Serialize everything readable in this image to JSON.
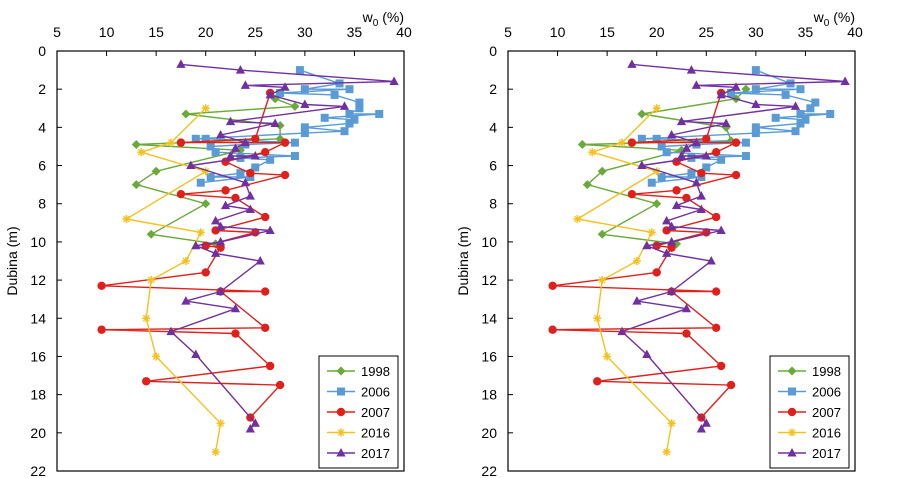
{
  "chart_data": [
    {
      "type": "scatter",
      "title": "",
      "xlabel": "w0 (%)",
      "xlabel_main": "w",
      "xlabel_sub": "0",
      "xlabel_unit": " (%)",
      "ylabel": "Dubina (m)",
      "xlim": [
        5,
        40
      ],
      "ylim": [
        0,
        22
      ],
      "y_inverted": true,
      "x_ticks": [
        5,
        10,
        15,
        20,
        25,
        30,
        35,
        40
      ],
      "y_ticks": [
        0,
        2,
        4,
        6,
        8,
        10,
        12,
        14,
        16,
        18,
        20,
        22
      ],
      "grid": false,
      "legend_position": "bottom-right",
      "series": [
        {
          "name": "1998",
          "color": "#6aaa3a",
          "marker": "diamond",
          "points": [
            [
              27,
              2.5
            ],
            [
              29,
              2.9
            ],
            [
              18,
              3.3
            ],
            [
              27.5,
              3.9
            ],
            [
              27.5,
              4.6
            ],
            [
              13,
              4.9
            ],
            [
              23.5,
              5.2
            ],
            [
              15,
              6.3
            ],
            [
              13,
              7.0
            ],
            [
              20,
              8.0
            ],
            [
              14.5,
              9.6
            ],
            [
              21,
              10.1
            ]
          ]
        },
        {
          "name": "2006",
          "color": "#5b9bd5",
          "marker": "square",
          "points": [
            [
              29.5,
              1.0
            ],
            [
              33.5,
              1.7
            ],
            [
              30,
              2.0
            ],
            [
              34.5,
              2.0
            ],
            [
              27.5,
              2.2
            ],
            [
              33,
              2.3
            ],
            [
              35.5,
              2.7
            ],
            [
              35.5,
              3.0
            ],
            [
              34.5,
              3.3
            ],
            [
              37.5,
              3.3
            ],
            [
              32,
              3.5
            ],
            [
              35,
              3.6
            ],
            [
              34.5,
              3.8
            ],
            [
              30,
              4.0
            ],
            [
              34,
              4.2
            ],
            [
              30,
              4.3
            ],
            [
              19,
              4.6
            ],
            [
              20,
              4.6
            ],
            [
              29,
              4.8
            ],
            [
              24,
              4.9
            ],
            [
              20.5,
              5.0
            ],
            [
              21,
              5.3
            ],
            [
              29,
              5.5
            ],
            [
              23.5,
              5.6
            ],
            [
              26.5,
              5.7
            ],
            [
              25,
              6.1
            ],
            [
              23.5,
              6.4
            ],
            [
              20.5,
              6.6
            ],
            [
              24.5,
              6.6
            ],
            [
              19.5,
              6.9
            ]
          ]
        },
        {
          "name": "2007",
          "color": "#e0201b",
          "marker": "circle",
          "points": [
            [
              26.5,
              2.2
            ],
            [
              25,
              4.6
            ],
            [
              17.5,
              4.8
            ],
            [
              28,
              4.8
            ],
            [
              26,
              5.3
            ],
            [
              22,
              5.8
            ],
            [
              24.5,
              6.4
            ],
            [
              28,
              6.5
            ],
            [
              22,
              7.3
            ],
            [
              17.5,
              7.5
            ],
            [
              23,
              7.7
            ],
            [
              26,
              8.7
            ],
            [
              21,
              9.4
            ],
            [
              25,
              9.5
            ],
            [
              20,
              10.2
            ],
            [
              21.5,
              10.3
            ],
            [
              20,
              11.6
            ],
            [
              9.5,
              12.3
            ],
            [
              26,
              12.6
            ],
            [
              21.5,
              12.6
            ],
            [
              26,
              14.5
            ],
            [
              9.5,
              14.6
            ],
            [
              23,
              14.8
            ],
            [
              26.5,
              16.5
            ],
            [
              14,
              17.3
            ],
            [
              27.5,
              17.5
            ],
            [
              24.5,
              19.2
            ]
          ]
        },
        {
          "name": "2016",
          "color": "#f5c11f",
          "marker": "star",
          "points": [
            [
              20,
              3.0
            ],
            [
              16.5,
              4.8
            ],
            [
              13.5,
              5.3
            ],
            [
              20,
              6.3
            ],
            [
              12,
              8.8
            ],
            [
              19.5,
              9.5
            ],
            [
              18,
              11.0
            ],
            [
              14.5,
              12.0
            ],
            [
              14,
              14.0
            ],
            [
              15,
              16.0
            ],
            [
              21.5,
              19.5
            ],
            [
              21,
              21.0
            ]
          ]
        },
        {
          "name": "2017",
          "color": "#7030a0",
          "marker": "triangle",
          "points": [
            [
              17.5,
              0.7
            ],
            [
              23.5,
              1.0
            ],
            [
              39,
              1.6
            ],
            [
              24,
              1.8
            ],
            [
              28,
              1.9
            ],
            [
              26.5,
              2.3
            ],
            [
              30,
              2.8
            ],
            [
              34,
              2.9
            ],
            [
              22.5,
              3.7
            ],
            [
              27,
              3.8
            ],
            [
              21.5,
              4.4
            ],
            [
              24,
              4.8
            ],
            [
              23,
              5.1
            ],
            [
              22.5,
              5.5
            ],
            [
              25,
              5.5
            ],
            [
              18.5,
              6.0
            ],
            [
              24,
              6.9
            ],
            [
              24.5,
              7.6
            ],
            [
              22,
              8.1
            ],
            [
              24.5,
              8.3
            ],
            [
              21,
              8.9
            ],
            [
              21.5,
              9.2
            ],
            [
              26.5,
              9.4
            ],
            [
              21.5,
              10.0
            ],
            [
              19,
              10.2
            ],
            [
              21,
              10.6
            ],
            [
              25.5,
              11.0
            ],
            [
              21.5,
              12.6
            ],
            [
              18,
              13.1
            ],
            [
              23,
              13.5
            ],
            [
              16.5,
              14.7
            ],
            [
              19,
              15.9
            ],
            [
              25,
              19.5
            ],
            [
              24.5,
              19.8
            ]
          ]
        }
      ]
    },
    {
      "type": "scatter",
      "title": "",
      "xlabel": "w0 (%)",
      "xlabel_main": "w",
      "xlabel_sub": "0",
      "xlabel_unit": " (%)",
      "ylabel": "Dubina (m)",
      "xlim": [
        5,
        40
      ],
      "ylim": [
        0,
        22
      ],
      "y_inverted": true,
      "x_ticks": [
        5,
        10,
        15,
        20,
        25,
        30,
        35,
        40
      ],
      "y_ticks": [
        0,
        2,
        4,
        6,
        8,
        10,
        12,
        14,
        16,
        18,
        20,
        22
      ],
      "grid": false,
      "legend_position": "bottom-right",
      "series": [
        {
          "name": "1998",
          "color": "#6aaa3a",
          "marker": "diamond",
          "points": [
            [
              29,
              2.0
            ],
            [
              28,
              2.5
            ],
            [
              18.5,
              3.3
            ],
            [
              27,
              4.0
            ],
            [
              27.5,
              4.7
            ],
            [
              12.5,
              4.9
            ],
            [
              22.5,
              5.2
            ],
            [
              14.5,
              6.3
            ],
            [
              13,
              7.0
            ],
            [
              20,
              8.0
            ],
            [
              14.5,
              9.6
            ],
            [
              22,
              10.1
            ]
          ]
        },
        {
          "name": "2006",
          "color": "#5b9bd5",
          "marker": "square",
          "points": [
            [
              30,
              1.0
            ],
            [
              33.5,
              1.7
            ],
            [
              30,
              2.0
            ],
            [
              34.5,
              2.0
            ],
            [
              27.5,
              2.2
            ],
            [
              33,
              2.3
            ],
            [
              36,
              2.7
            ],
            [
              35.5,
              3.0
            ],
            [
              34.5,
              3.3
            ],
            [
              37.5,
              3.3
            ],
            [
              32,
              3.5
            ],
            [
              35,
              3.6
            ],
            [
              34.5,
              3.8
            ],
            [
              30,
              4.0
            ],
            [
              34,
              4.2
            ],
            [
              30,
              4.3
            ],
            [
              18.5,
              4.6
            ],
            [
              20,
              4.6
            ],
            [
              29,
              4.8
            ],
            [
              24,
              4.9
            ],
            [
              20.5,
              5.0
            ],
            [
              21,
              5.3
            ],
            [
              29,
              5.5
            ],
            [
              23.5,
              5.6
            ],
            [
              26.5,
              5.7
            ],
            [
              25,
              6.1
            ],
            [
              23.5,
              6.4
            ],
            [
              20.5,
              6.6
            ],
            [
              24.5,
              6.6
            ],
            [
              19.5,
              6.9
            ]
          ]
        },
        {
          "name": "2007",
          "color": "#e0201b",
          "marker": "circle",
          "points": [
            [
              26.5,
              2.2
            ],
            [
              25,
              4.6
            ],
            [
              17.5,
              4.8
            ],
            [
              28,
              4.8
            ],
            [
              26,
              5.3
            ],
            [
              22,
              5.8
            ],
            [
              24.5,
              6.4
            ],
            [
              28,
              6.5
            ],
            [
              22,
              7.3
            ],
            [
              17.5,
              7.5
            ],
            [
              23,
              7.7
            ],
            [
              26,
              8.7
            ],
            [
              21,
              9.4
            ],
            [
              25,
              9.5
            ],
            [
              20,
              10.2
            ],
            [
              21.5,
              10.3
            ],
            [
              20,
              11.6
            ],
            [
              9.5,
              12.3
            ],
            [
              26,
              12.6
            ],
            [
              21.5,
              12.6
            ],
            [
              26,
              14.5
            ],
            [
              9.5,
              14.6
            ],
            [
              23,
              14.8
            ],
            [
              26.5,
              16.5
            ],
            [
              14,
              17.3
            ],
            [
              27.5,
              17.5
            ],
            [
              24.5,
              19.2
            ]
          ]
        },
        {
          "name": "2016",
          "color": "#f5c11f",
          "marker": "star",
          "points": [
            [
              20,
              3.0
            ],
            [
              16.5,
              4.8
            ],
            [
              13.5,
              5.3
            ],
            [
              20,
              6.3
            ],
            [
              12,
              8.8
            ],
            [
              19.5,
              9.5
            ],
            [
              18,
              11.0
            ],
            [
              14.5,
              12.0
            ],
            [
              14,
              14.0
            ],
            [
              15,
              16.0
            ],
            [
              21.5,
              19.5
            ],
            [
              21,
              21.0
            ]
          ]
        },
        {
          "name": "2017",
          "color": "#7030a0",
          "marker": "triangle",
          "points": [
            [
              17.5,
              0.7
            ],
            [
              23.5,
              1.0
            ],
            [
              39,
              1.6
            ],
            [
              24,
              1.8
            ],
            [
              28,
              1.9
            ],
            [
              26.5,
              2.3
            ],
            [
              30,
              2.8
            ],
            [
              34,
              2.9
            ],
            [
              22.5,
              3.7
            ],
            [
              27,
              3.8
            ],
            [
              21.5,
              4.4
            ],
            [
              24,
              4.8
            ],
            [
              23,
              5.1
            ],
            [
              22.5,
              5.5
            ],
            [
              25,
              5.5
            ],
            [
              18.5,
              6.0
            ],
            [
              24,
              6.9
            ],
            [
              24.5,
              7.6
            ],
            [
              22,
              8.1
            ],
            [
              24.5,
              8.3
            ],
            [
              21,
              8.9
            ],
            [
              21.5,
              9.2
            ],
            [
              26.5,
              9.4
            ],
            [
              21.5,
              10.0
            ],
            [
              19,
              10.2
            ],
            [
              21,
              10.6
            ],
            [
              25.5,
              11.0
            ],
            [
              21.5,
              12.6
            ],
            [
              18,
              13.1
            ],
            [
              23,
              13.5
            ],
            [
              16.5,
              14.7
            ],
            [
              19,
              15.9
            ],
            [
              25,
              19.5
            ],
            [
              24.5,
              19.8
            ]
          ]
        }
      ]
    }
  ]
}
